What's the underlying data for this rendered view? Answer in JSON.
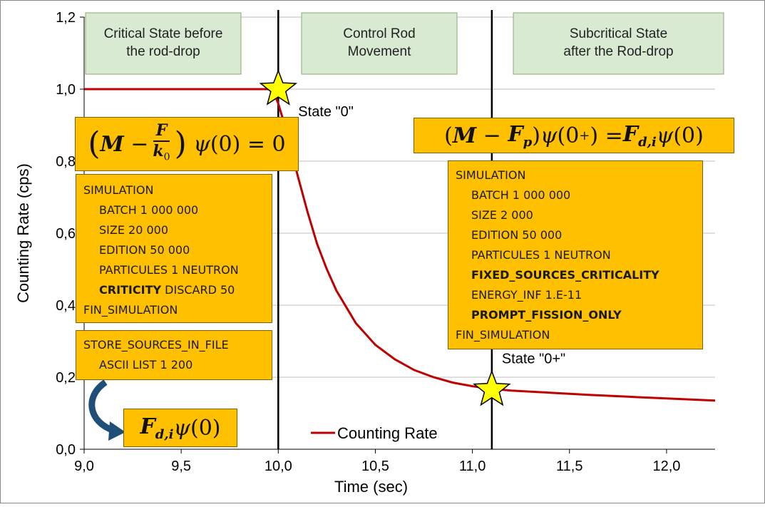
{
  "chart_data": {
    "type": "line",
    "xlabel": "Time (sec)",
    "ylabel": "Counting Rate (cps)",
    "xlim": [
      9.0,
      12.25
    ],
    "ylim": [
      0.0,
      1.2
    ],
    "x_ticks": [
      "9,0",
      "9,5",
      "10,0",
      "10,5",
      "11,0",
      "11,5",
      "12,0"
    ],
    "y_ticks": [
      "0,0",
      "0,2",
      "0,4",
      "0,6",
      "0,8",
      "1,0",
      "1,2"
    ],
    "grid": true,
    "legend": "bottom-center",
    "series": [
      {
        "name": "Counting Rate",
        "color": "#c00000",
        "x": [
          9.0,
          9.5,
          9.97,
          10.0,
          10.05,
          10.1,
          10.15,
          10.2,
          10.25,
          10.3,
          10.4,
          10.5,
          10.6,
          10.7,
          10.8,
          10.9,
          11.0,
          11.1,
          11.2,
          11.4,
          11.6,
          11.8,
          12.0,
          12.25
        ],
        "y": [
          1.0,
          1.0,
          1.0,
          0.96,
          0.87,
          0.76,
          0.66,
          0.57,
          0.5,
          0.44,
          0.35,
          0.29,
          0.25,
          0.22,
          0.2,
          0.185,
          0.175,
          0.168,
          0.163,
          0.157,
          0.151,
          0.146,
          0.141,
          0.135
        ]
      }
    ],
    "vlines": [
      10.0,
      11.1
    ],
    "markers": [
      {
        "x": 10.0,
        "y": 1.0,
        "label": "State \"0\"",
        "color": "#ffff00"
      },
      {
        "x": 11.1,
        "y": 0.165,
        "label": "State \"0+\"",
        "color": "#ffff00"
      }
    ],
    "region_labels": [
      "Critical State before the rod-drop",
      "Control Rod Movement",
      "Subcritical State after the Rod-drop"
    ]
  },
  "left_sim": {
    "lines": [
      {
        "text": "SIMULATION",
        "indent": false,
        "bold": false
      },
      {
        "text": "BATCH 1 000 000",
        "indent": true,
        "bold": false
      },
      {
        "text": "SIZE 20 000",
        "indent": true,
        "bold": false
      },
      {
        "text": "EDITION 50 000",
        "indent": true,
        "bold": false
      },
      {
        "text": "PARTICULES 1 NEUTRON",
        "indent": true,
        "bold": false
      },
      {
        "text": "FIN_SIMULATION",
        "indent": false,
        "bold": false
      }
    ],
    "criticity_word": "CRITICITY",
    "criticity_rest": " DISCARD 50"
  },
  "store_box": {
    "line1": "STORE_SOURCES_IN_FILE",
    "line2": "ASCII LIST 1 200"
  },
  "right_sim": {
    "lines": [
      {
        "text": "SIMULATION",
        "indent": false,
        "bold": false
      },
      {
        "text": "BATCH 1 000 000",
        "indent": true,
        "bold": false
      },
      {
        "text": "SIZE 2 000",
        "indent": true,
        "bold": false
      },
      {
        "text": "EDITION 50 000",
        "indent": true,
        "bold": false
      },
      {
        "text": "PARTICULES 1 NEUTRON",
        "indent": true,
        "bold": false
      },
      {
        "text": "FIXED_SOURCES_CRITICALITY",
        "indent": true,
        "bold": true
      },
      {
        "text": "ENERGY_INF 1.E-11",
        "indent": true,
        "bold": false
      },
      {
        "text": "PROMPT_FISSION_ONLY",
        "indent": true,
        "bold": true
      },
      {
        "text": "FIN_SIMULATION",
        "indent": false,
        "bold": false
      }
    ]
  },
  "equations": {
    "left": "(M − F/k0) ψ(0) = 0",
    "right": "(M − Fp) ψ(0+) = Fd,i ψ(0)",
    "bottom": "Fd,i ψ(0)"
  },
  "colors": {
    "box_fill": "#ffc000",
    "region_fill": "#d9ead3",
    "curve": "#c00000",
    "arrow": "#1f4e79"
  }
}
